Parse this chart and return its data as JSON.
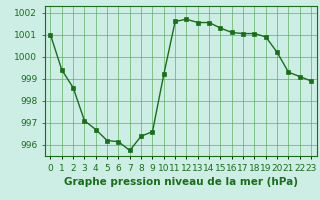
{
  "x": [
    0,
    1,
    2,
    3,
    4,
    5,
    6,
    7,
    8,
    9,
    10,
    11,
    12,
    13,
    14,
    15,
    16,
    17,
    18,
    19,
    20,
    21,
    22,
    23
  ],
  "y": [
    1001.0,
    999.4,
    998.6,
    997.1,
    996.7,
    996.2,
    996.15,
    995.75,
    996.4,
    996.6,
    999.2,
    1001.6,
    1001.7,
    1001.55,
    1001.55,
    1001.3,
    1001.1,
    1001.05,
    1001.05,
    1000.9,
    1000.2,
    999.3,
    999.1,
    998.9
  ],
  "line_color": "#1a6e1a",
  "marker_color": "#1a6e1a",
  "bg_color": "#cceee4",
  "grid_color": "#55aa55",
  "title": "Graphe pression niveau de la mer (hPa)",
  "ylim": [
    995.5,
    1002.3
  ],
  "xlim": [
    -0.5,
    23.5
  ],
  "yticks": [
    996,
    997,
    998,
    999,
    1000,
    1001,
    1002
  ],
  "xtick_labels": [
    "0",
    "1",
    "2",
    "3",
    "4",
    "5",
    "6",
    "7",
    "8",
    "9",
    "10",
    "11",
    "12",
    "13",
    "14",
    "15",
    "16",
    "17",
    "18",
    "19",
    "20",
    "21",
    "22",
    "23"
  ],
  "title_fontsize": 7.5,
  "tick_fontsize": 6.5,
  "line_width": 1.0,
  "marker_size": 2.5
}
